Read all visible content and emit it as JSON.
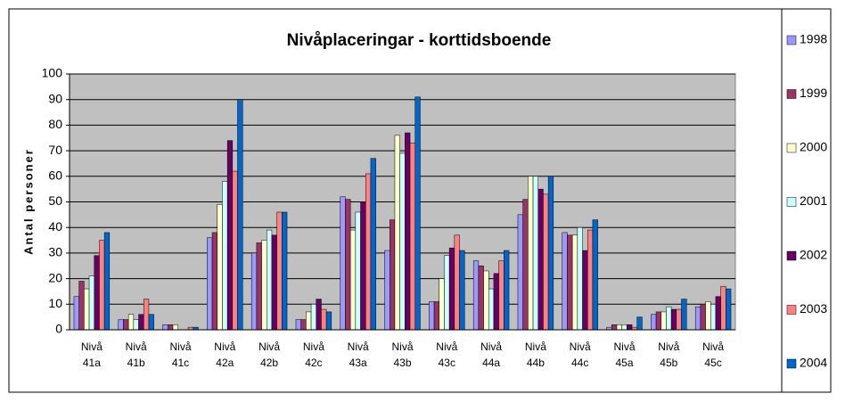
{
  "chart_data": {
    "type": "bar",
    "title": "Nivåplaceringar - korttidsboende",
    "y_label": "Antal personer",
    "categories": [
      "Nivå 41a",
      "Nivå 41b",
      "Nivå 41c",
      "Nivå 42a",
      "Nivå 42b",
      "Nivå 42c",
      "Nivå 43a",
      "Nivå 43b",
      "Nivå 43c",
      "Nivå 44a",
      "Nivå 44b",
      "Nivå 44c",
      "Nivå 45a",
      "Nivå 45b",
      "Nivå 45c"
    ],
    "series": [
      {
        "name": "1998",
        "color": "#9999ff",
        "values": [
          13,
          4,
          2,
          36,
          30,
          4,
          52,
          31,
          11,
          27,
          45,
          38,
          1,
          6,
          9
        ]
      },
      {
        "name": "1999",
        "color": "#993366",
        "values": [
          19,
          4,
          2,
          38,
          34,
          4,
          51,
          43,
          11,
          25,
          51,
          37,
          2,
          7,
          10
        ]
      },
      {
        "name": "2000",
        "color": "#ffffcc",
        "values": [
          16,
          6,
          2,
          49,
          35,
          7,
          39,
          76,
          20,
          23,
          60,
          37,
          2,
          7,
          11
        ]
      },
      {
        "name": "2001",
        "color": "#ccffff",
        "values": [
          21,
          4,
          0,
          58,
          39,
          10,
          46,
          69,
          29,
          16,
          60,
          40,
          2,
          9,
          10
        ]
      },
      {
        "name": "2002",
        "color": "#660066",
        "values": [
          29,
          6,
          0,
          74,
          37,
          12,
          50,
          77,
          32,
          22,
          55,
          31,
          2,
          8,
          13
        ]
      },
      {
        "name": "2003",
        "color": "#ff8080",
        "values": [
          35,
          12,
          1,
          62,
          46,
          8,
          61,
          73,
          37,
          27,
          53,
          39,
          1,
          8,
          17
        ]
      },
      {
        "name": "2004",
        "color": "#0066cc",
        "values": [
          38,
          6,
          1,
          90,
          46,
          7,
          67,
          91,
          31,
          31,
          60,
          43,
          5,
          12,
          16
        ]
      }
    ],
    "ylim": [
      0,
      100
    ],
    "yticks": [
      0,
      10,
      20,
      30,
      40,
      50,
      60,
      70,
      80,
      90,
      100
    ],
    "grid": true,
    "plot_background": "#c0c0c0",
    "legend": "right"
  }
}
